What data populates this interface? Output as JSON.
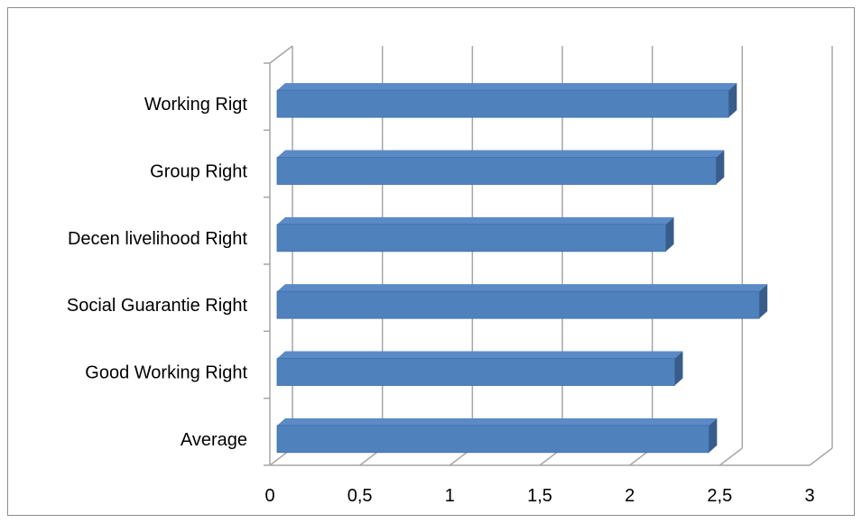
{
  "chart_data": {
    "type": "bar",
    "orientation": "horizontal",
    "style": "3d",
    "categories": [
      "Working Rigt",
      "Group Right",
      "Decen livelihood Right",
      "Social Guarantie Right",
      "Good Working Right",
      "Average"
    ],
    "values": [
      2.55,
      2.48,
      2.2,
      2.72,
      2.25,
      2.44
    ],
    "xlim": [
      0,
      3
    ],
    "x_ticks": [
      "0",
      "0,5",
      "1",
      "1,5",
      "2",
      "2,5",
      "3"
    ],
    "x_tick_values": [
      0,
      0.5,
      1,
      1.5,
      2,
      2.5,
      3
    ],
    "grid": "vertical",
    "legend": "none",
    "colors": {
      "bar_front": "#4f81bd",
      "bar_top": "#5b8ac6",
      "bar_side": "#385d8a",
      "grid": "#a6a6a6",
      "frame": "#8c8c8c"
    }
  }
}
